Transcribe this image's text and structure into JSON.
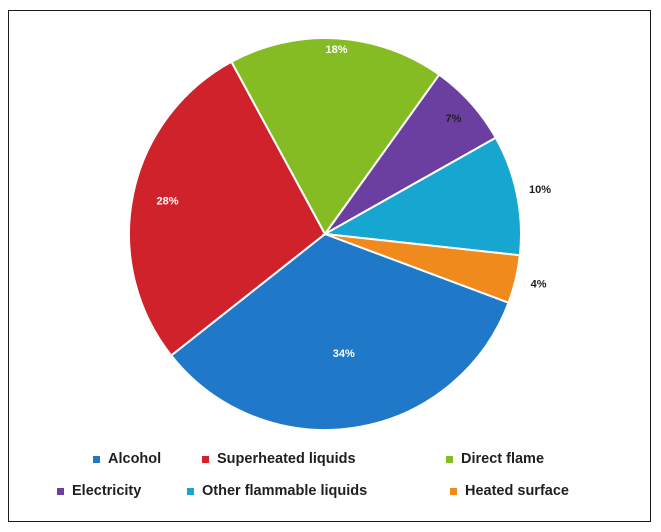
{
  "chart_data": {
    "type": "pie",
    "title": "",
    "slices": [
      {
        "name": "Alcohol",
        "value": 34,
        "label": "34%",
        "color": "#1f78c8"
      },
      {
        "name": "Superheated liquids",
        "value": 28,
        "label": "28%",
        "color": "#d0222b"
      },
      {
        "name": "Direct flame",
        "value": 18,
        "label": "18%",
        "color": "#86bc23"
      },
      {
        "name": "Electricity",
        "value": 7,
        "label": "7%",
        "color": "#6a3fa0"
      },
      {
        "name": "Other flammable liquids",
        "value": 10,
        "label": "10%",
        "color": "#16a6cf"
      },
      {
        "name": "Heated surface",
        "value": 4,
        "label": "4%",
        "color": "#f18a1c"
      }
    ],
    "legend": {
      "position": "bottom",
      "rows": [
        [
          "Alcohol",
          "Superheated liquids",
          "Direct flame"
        ],
        [
          "Electricity",
          "Other flammable liquids",
          "Heated surface"
        ]
      ]
    }
  }
}
